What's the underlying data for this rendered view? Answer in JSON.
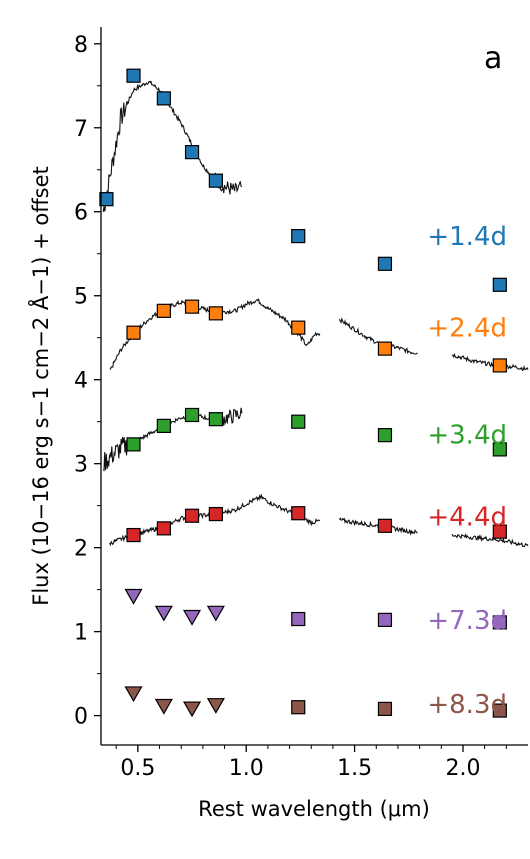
{
  "chart_data": {
    "type": "scatter",
    "panel_label": "a",
    "xlabel": "Rest wavelength (μm)",
    "ylabel": "Flux (10−16 erg s−1 cm−2 Å−1) + offset",
    "xlim": [
      0.33,
      2.3
    ],
    "ylim": [
      -0.35,
      8.2
    ],
    "xticks": [
      "0.5",
      "1.0",
      "1.5",
      "2.0"
    ],
    "yticks": [
      "0",
      "1",
      "2",
      "3",
      "4",
      "5",
      "6",
      "7",
      "8"
    ],
    "x_tick_values": [
      0.5,
      1.0,
      1.5,
      2.0
    ],
    "y_tick_values": [
      0,
      1,
      2,
      3,
      4,
      5,
      6,
      7,
      8
    ],
    "series": [
      {
        "name": "+1.4d",
        "color": "#1f77b4",
        "photometry": [
          [
            0.355,
            6.15
          ],
          [
            0.48,
            7.62
          ],
          [
            0.62,
            7.35
          ],
          [
            0.75,
            6.71
          ],
          [
            0.86,
            6.37
          ],
          [
            1.24,
            5.71
          ],
          [
            1.64,
            5.38
          ],
          [
            2.17,
            5.13
          ]
        ],
        "upper_limits": [],
        "spectrum": [
          [
            0.34,
            6.0
          ],
          [
            0.37,
            6.4
          ],
          [
            0.42,
            7.1
          ],
          [
            0.48,
            7.45
          ],
          [
            0.55,
            7.55
          ],
          [
            0.6,
            7.45
          ],
          [
            0.65,
            7.25
          ],
          [
            0.7,
            7.05
          ],
          [
            0.75,
            6.8
          ],
          [
            0.8,
            6.55
          ],
          [
            0.85,
            6.4
          ],
          [
            0.9,
            6.3
          ],
          [
            0.95,
            6.25
          ],
          [
            0.98,
            6.3
          ]
        ]
      },
      {
        "name": "+2.4d",
        "color": "#ff7f0e",
        "photometry": [
          [
            0.48,
            4.56
          ],
          [
            0.62,
            4.82
          ],
          [
            0.75,
            4.87
          ],
          [
            0.86,
            4.79
          ],
          [
            1.24,
            4.62
          ],
          [
            1.64,
            4.37
          ],
          [
            2.17,
            4.17
          ]
        ],
        "upper_limits": [],
        "spectrum": [
          [
            0.37,
            4.1
          ],
          [
            0.42,
            4.35
          ],
          [
            0.48,
            4.55
          ],
          [
            0.55,
            4.72
          ],
          [
            0.62,
            4.85
          ],
          [
            0.7,
            4.92
          ],
          [
            0.78,
            4.86
          ],
          [
            0.86,
            4.8
          ],
          [
            0.95,
            4.82
          ],
          [
            1.0,
            4.9
          ],
          [
            1.05,
            4.95
          ],
          [
            1.1,
            4.85
          ],
          [
            1.18,
            4.72
          ],
          [
            1.24,
            4.55
          ],
          [
            1.28,
            4.4
          ],
          [
            1.32,
            4.55
          ],
          [
            1.34,
            4.55
          ],
          null,
          [
            1.43,
            4.72
          ],
          [
            1.5,
            4.6
          ],
          [
            1.56,
            4.5
          ],
          [
            1.62,
            4.42
          ],
          [
            1.7,
            4.38
          ],
          [
            1.76,
            4.33
          ],
          [
            1.79,
            4.32
          ],
          null,
          [
            1.95,
            4.3
          ],
          [
            2.05,
            4.22
          ],
          [
            2.15,
            4.17
          ],
          [
            2.25,
            4.15
          ],
          [
            2.3,
            4.12
          ]
        ]
      },
      {
        "name": "+3.4d",
        "color": "#2ca02c",
        "photometry": [
          [
            0.48,
            3.23
          ],
          [
            0.62,
            3.45
          ],
          [
            0.75,
            3.58
          ],
          [
            0.86,
            3.53
          ],
          [
            1.24,
            3.5
          ],
          [
            1.64,
            3.34
          ],
          [
            2.17,
            3.17
          ]
        ],
        "upper_limits": [],
        "spectrum": [
          [
            0.34,
            3.0
          ],
          [
            0.38,
            3.1
          ],
          [
            0.43,
            3.2
          ],
          [
            0.48,
            3.25
          ],
          [
            0.55,
            3.35
          ],
          [
            0.62,
            3.45
          ],
          [
            0.7,
            3.55
          ],
          [
            0.78,
            3.57
          ],
          [
            0.85,
            3.52
          ],
          [
            0.92,
            3.55
          ],
          [
            0.98,
            3.6
          ]
        ]
      },
      {
        "name": "+4.4d",
        "color": "#d62728",
        "photometry": [
          [
            0.48,
            2.15
          ],
          [
            0.62,
            2.23
          ],
          [
            0.75,
            2.38
          ],
          [
            0.86,
            2.4
          ],
          [
            1.24,
            2.41
          ],
          [
            1.64,
            2.26
          ],
          [
            2.17,
            2.19
          ]
        ],
        "upper_limits": [],
        "spectrum": [
          [
            0.37,
            2.05
          ],
          [
            0.42,
            2.1
          ],
          [
            0.48,
            2.15
          ],
          [
            0.55,
            2.2
          ],
          [
            0.62,
            2.25
          ],
          [
            0.7,
            2.35
          ],
          [
            0.78,
            2.38
          ],
          [
            0.86,
            2.4
          ],
          [
            0.95,
            2.45
          ],
          [
            1.02,
            2.55
          ],
          [
            1.07,
            2.6
          ],
          [
            1.12,
            2.52
          ],
          [
            1.18,
            2.45
          ],
          [
            1.24,
            2.38
          ],
          [
            1.3,
            2.3
          ],
          [
            1.34,
            2.32
          ],
          null,
          [
            1.43,
            2.33
          ],
          [
            1.5,
            2.3
          ],
          [
            1.58,
            2.27
          ],
          [
            1.66,
            2.24
          ],
          [
            1.74,
            2.2
          ],
          [
            1.79,
            2.18
          ],
          null,
          [
            1.95,
            2.15
          ],
          [
            2.05,
            2.12
          ],
          [
            2.15,
            2.1
          ],
          [
            2.25,
            2.05
          ],
          [
            2.3,
            2.02
          ]
        ]
      },
      {
        "name": "+7.3d",
        "color": "#9467bd",
        "photometry": [
          [
            1.24,
            1.15
          ],
          [
            1.64,
            1.14
          ],
          [
            2.17,
            1.11
          ]
        ],
        "upper_limits": [
          [
            0.48,
            1.43
          ],
          [
            0.62,
            1.23
          ],
          [
            0.75,
            1.18
          ],
          [
            0.86,
            1.23
          ]
        ],
        "spectrum": []
      },
      {
        "name": "+8.3d",
        "color": "#8c564b",
        "photometry": [
          [
            1.24,
            0.1
          ],
          [
            1.64,
            0.08
          ],
          [
            2.17,
            0.06
          ]
        ],
        "upper_limits": [
          [
            0.48,
            0.27
          ],
          [
            0.62,
            0.12
          ],
          [
            0.75,
            0.09
          ],
          [
            0.86,
            0.13
          ]
        ],
        "spectrum": []
      }
    ]
  }
}
